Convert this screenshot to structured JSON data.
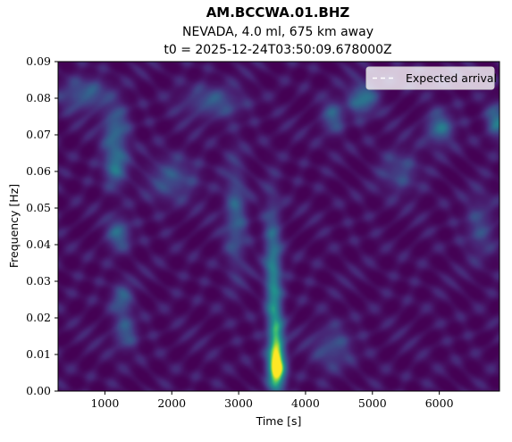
{
  "chart_data": {
    "type": "heatmap",
    "title": "AM.BCCWA.01.BHZ",
    "subtitle": "NEVADA, 4.0 ml, 675 km away",
    "subtitle2": "t0 = 2025-12-24T03:50:09.678000Z",
    "xlabel": "Time [s]",
    "ylabel": "Frequency [Hz]",
    "xlim": [
      300,
      6900
    ],
    "ylim": [
      0,
      0.09
    ],
    "xticks": [
      1000,
      2000,
      3000,
      4000,
      5000,
      6000
    ],
    "xtick_labels": [
      "1000",
      "2000",
      "3000",
      "4000",
      "5000",
      "6000"
    ],
    "yticks": [
      0,
      0.01,
      0.02,
      0.03,
      0.04,
      0.05,
      0.06,
      0.07,
      0.08,
      0.09
    ],
    "ytick_labels": [
      "0.00",
      "0.01",
      "0.02",
      "0.03",
      "0.04",
      "0.05",
      "0.06",
      "0.07",
      "0.08",
      "0.09"
    ],
    "colormap": "viridis",
    "legend": {
      "placement": "top-right",
      "entries": [
        {
          "label": "Expected arrival",
          "style": "dashed",
          "color": "#ffffff"
        }
      ]
    },
    "features": [
      {
        "t": 3560,
        "f": 0.006,
        "intensity": 1.0,
        "st": 90,
        "sf": 0.004
      },
      {
        "t": 3560,
        "f": 0.014,
        "intensity": 0.55,
        "st": 80,
        "sf": 0.005
      },
      {
        "t": 3520,
        "f": 0.026,
        "intensity": 0.42,
        "st": 80,
        "sf": 0.008
      },
      {
        "t": 3500,
        "f": 0.04,
        "intensity": 0.3,
        "st": 90,
        "sf": 0.01
      },
      {
        "t": 2950,
        "f": 0.048,
        "intensity": 0.32,
        "st": 110,
        "sf": 0.01
      },
      {
        "t": 1150,
        "f": 0.062,
        "intensity": 0.42,
        "st": 120,
        "sf": 0.004
      },
      {
        "t": 1150,
        "f": 0.072,
        "intensity": 0.36,
        "st": 130,
        "sf": 0.004
      },
      {
        "t": 1200,
        "f": 0.043,
        "intensity": 0.36,
        "st": 120,
        "sf": 0.003
      },
      {
        "t": 1250,
        "f": 0.025,
        "intensity": 0.32,
        "st": 110,
        "sf": 0.003
      },
      {
        "t": 1300,
        "f": 0.016,
        "intensity": 0.3,
        "st": 120,
        "sf": 0.003
      },
      {
        "t": 700,
        "f": 0.081,
        "intensity": 0.32,
        "st": 250,
        "sf": 0.003
      },
      {
        "t": 2600,
        "f": 0.079,
        "intensity": 0.28,
        "st": 300,
        "sf": 0.003
      },
      {
        "t": 4850,
        "f": 0.08,
        "intensity": 0.45,
        "st": 140,
        "sf": 0.003
      },
      {
        "t": 4400,
        "f": 0.075,
        "intensity": 0.32,
        "st": 120,
        "sf": 0.003
      },
      {
        "t": 6000,
        "f": 0.072,
        "intensity": 0.4,
        "st": 140,
        "sf": 0.003
      },
      {
        "t": 6850,
        "f": 0.074,
        "intensity": 0.42,
        "st": 100,
        "sf": 0.003
      },
      {
        "t": 4400,
        "f": 0.012,
        "intensity": 0.24,
        "st": 200,
        "sf": 0.004
      },
      {
        "t": 2000,
        "f": 0.058,
        "intensity": 0.26,
        "st": 250,
        "sf": 0.004
      },
      {
        "t": 5400,
        "f": 0.06,
        "intensity": 0.22,
        "st": 200,
        "sf": 0.004
      },
      {
        "t": 6600,
        "f": 0.045,
        "intensity": 0.2,
        "st": 150,
        "sf": 0.006
      }
    ]
  }
}
